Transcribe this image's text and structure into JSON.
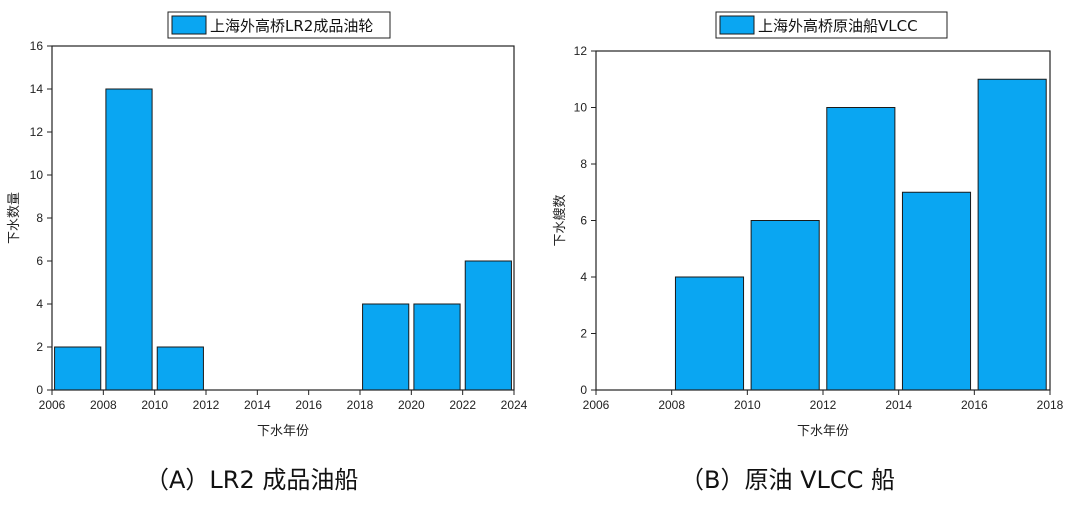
{
  "charts": [
    {
      "chart_data": {
        "type": "bar",
        "legend": "上海外高桥LR2成品油轮",
        "legend_position": "top-center",
        "xlabel": "下水年份",
        "ylabel": "下水数量",
        "xlim": [
          2006,
          2024
        ],
        "ylim": [
          0,
          16
        ],
        "x_ticks": [
          2006,
          2008,
          2010,
          2012,
          2014,
          2016,
          2018,
          2020,
          2022,
          2024
        ],
        "y_ticks": [
          0,
          2,
          4,
          6,
          8,
          10,
          12,
          14,
          16
        ],
        "bar_width": 1.8,
        "bars": [
          {
            "x": 2007,
            "value": 2
          },
          {
            "x": 2009,
            "value": 14
          },
          {
            "x": 2011,
            "value": 2
          },
          {
            "x": 2019,
            "value": 4
          },
          {
            "x": 2021,
            "value": 4
          },
          {
            "x": 2023,
            "value": 6
          }
        ],
        "color": "#0aa6f2",
        "grid": false
      },
      "caption": "（A）LR2 成品油船"
    },
    {
      "chart_data": {
        "type": "bar",
        "legend": "上海外高桥原油船VLCC",
        "legend_position": "top-center",
        "xlabel": "下水年份",
        "ylabel": "下水艘数",
        "xlim": [
          2006,
          2018
        ],
        "ylim": [
          0,
          12
        ],
        "x_ticks": [
          2006,
          2008,
          2010,
          2012,
          2014,
          2016,
          2018
        ],
        "y_ticks": [
          0,
          2,
          4,
          6,
          8,
          10,
          12
        ],
        "bar_width": 1.8,
        "bars": [
          {
            "x": 2009,
            "value": 4
          },
          {
            "x": 2011,
            "value": 6
          },
          {
            "x": 2013,
            "value": 10
          },
          {
            "x": 2015,
            "value": 7
          },
          {
            "x": 2017,
            "value": 11
          }
        ],
        "color": "#0aa6f2",
        "grid": false
      },
      "caption": "（B）原油 VLCC 船"
    }
  ]
}
